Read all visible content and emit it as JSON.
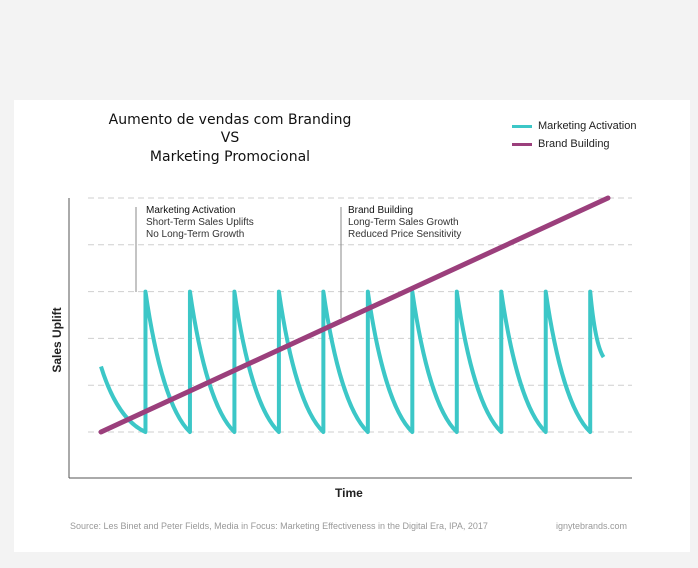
{
  "chart_data": {
    "type": "line",
    "title_lines": [
      "Aumento de vendas com Branding",
      "VS",
      "Marketing Promocional"
    ],
    "xlabel": "Time",
    "ylabel": "Sales Uplift",
    "grid": true,
    "legend_position": "top-right",
    "series": [
      {
        "name": "Marketing Activation",
        "color": "#3cc7c7",
        "pattern": "sawtooth",
        "peak": 3,
        "base": 0,
        "spike_x": [
          1,
          2,
          3,
          4,
          5,
          6,
          7,
          8,
          9,
          10,
          11
        ],
        "start": [
          0,
          1.4
        ],
        "end": [
          11.3,
          1.6
        ]
      },
      {
        "name": "Brand Building",
        "color": "#9b3f7c",
        "points": [
          [
            0,
            0
          ],
          [
            11.4,
            5
          ]
        ]
      }
    ],
    "xlim": [
      0,
      11.4
    ],
    "ylim": [
      0,
      5
    ],
    "annotations": [
      {
        "head": "Marketing Activation",
        "lines": [
          "Short-Term Sales Uplifts",
          "No Long-Term Growth"
        ]
      },
      {
        "head": "Brand Building",
        "lines": [
          "Long-Term Sales Growth",
          "Reduced Price Sensitivity"
        ]
      }
    ]
  },
  "legend": [
    "Marketing Activation",
    "Brand Building"
  ],
  "source": "Source: Les Binet and Peter Fields, Media in Focus: Marketing Effectiveness in the Digital Era, IPA, 2017",
  "brand": "ignytebrands.com"
}
